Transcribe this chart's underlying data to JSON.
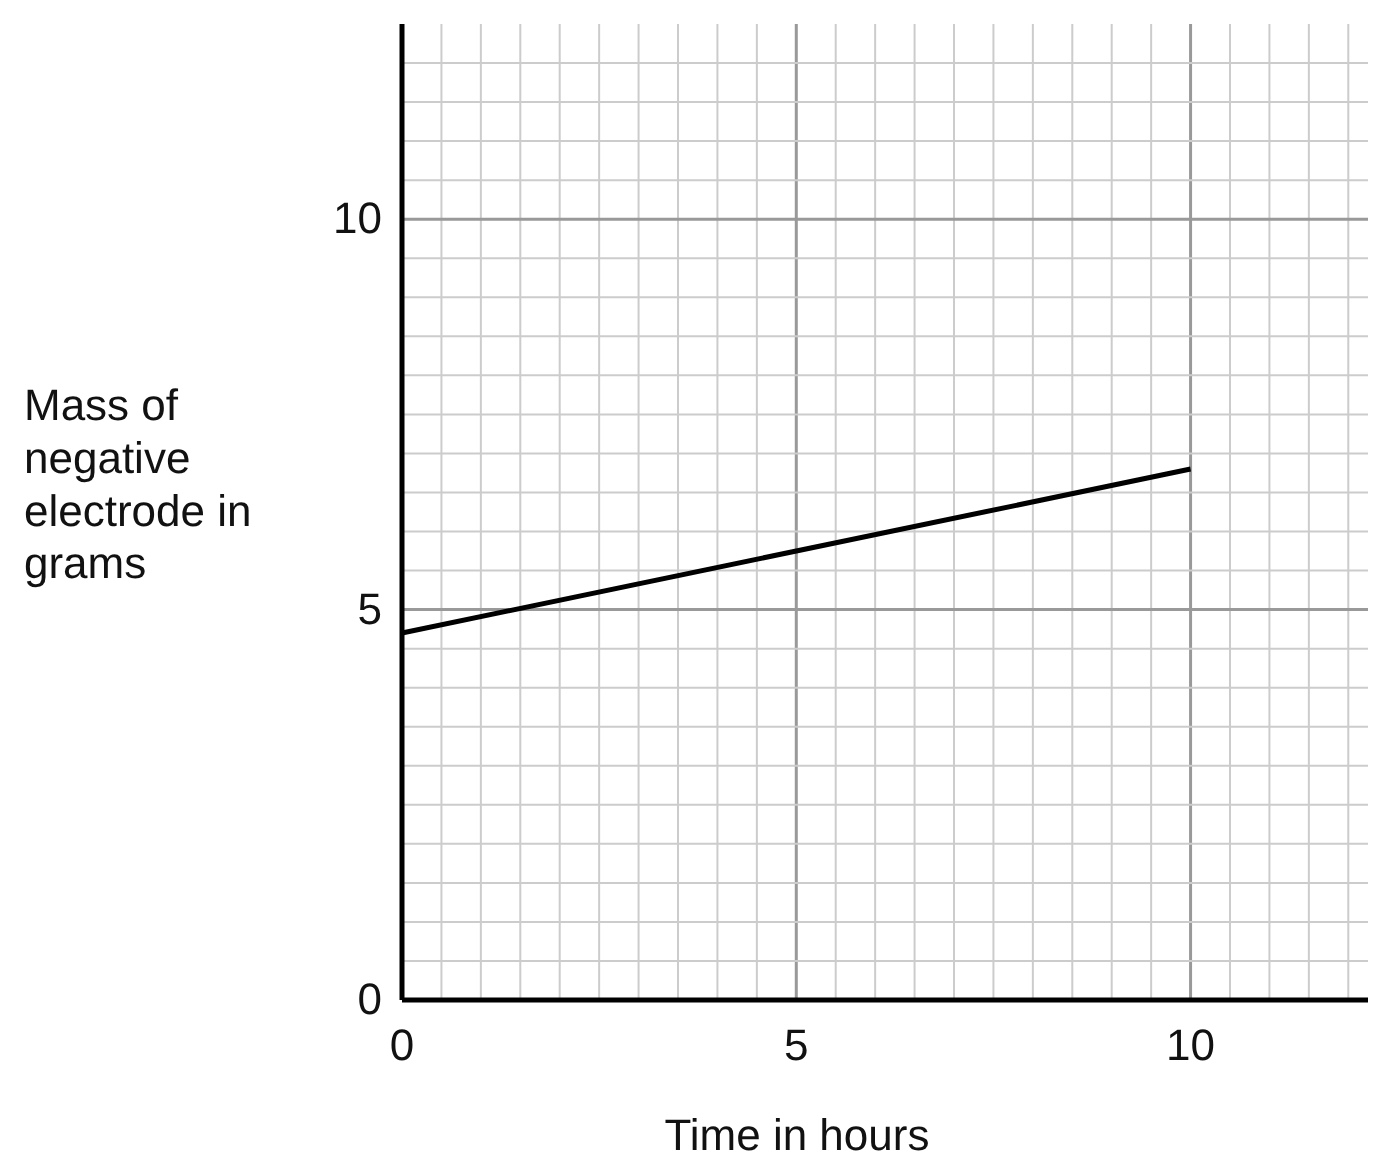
{
  "chart_data": {
    "type": "line",
    "xlabel": "Time in hours",
    "ylabel": "Mass of negative electrode in grams",
    "x": [
      0,
      10
    ],
    "series": [
      {
        "color": "#000000",
        "values": [
          4.7,
          6.8
        ]
      }
    ],
    "xlim": [
      0,
      12.25
    ],
    "ylim": [
      0,
      12.5
    ],
    "xticks": [
      0,
      {
        "value": 0.5,
        "label": null
      },
      {
        "value": 1,
        "label": null
      },
      {
        "value": 1.5,
        "label": null
      },
      {
        "value": 2,
        "label": null
      },
      {
        "value": 2.5,
        "label": null
      },
      {
        "value": 3,
        "label": null
      },
      {
        "value": 3.5,
        "label": null
      },
      {
        "value": 4,
        "label": null
      },
      {
        "value": 4.5,
        "label": null
      },
      5,
      {
        "value": 5.5,
        "label": null
      },
      {
        "value": 6,
        "label": null
      },
      {
        "value": 6.5,
        "label": null
      },
      {
        "value": 7,
        "label": null
      },
      {
        "value": 7.5,
        "label": null
      },
      {
        "value": 8,
        "label": null
      },
      {
        "value": 8.5,
        "label": null
      },
      {
        "value": 9,
        "label": null
      },
      {
        "value": 9.5,
        "label": null
      },
      10,
      {
        "value": 10.5,
        "label": null
      },
      {
        "value": 11,
        "label": null
      },
      {
        "value": 11.5,
        "label": null
      },
      {
        "value": 12,
        "label": null
      }
    ],
    "yticks": [
      0,
      {
        "value": 0.5,
        "label": null
      },
      {
        "value": 1,
        "label": null
      },
      {
        "value": 1.5,
        "label": null
      },
      {
        "value": 2,
        "label": null
      },
      {
        "value": 2.5,
        "label": null
      },
      {
        "value": 3,
        "label": null
      },
      {
        "value": 3.5,
        "label": null
      },
      {
        "value": 4,
        "label": null
      },
      {
        "value": 4.5,
        "label": null
      },
      5,
      {
        "value": 5.5,
        "label": null
      },
      {
        "value": 6,
        "label": null
      },
      {
        "value": 6.5,
        "label": null
      },
      {
        "value": 7,
        "label": null
      },
      {
        "value": 7.5,
        "label": null
      },
      {
        "value": 8,
        "label": null
      },
      {
        "value": 8.5,
        "label": null
      },
      {
        "value": 9,
        "label": null
      },
      {
        "value": 9.5,
        "label": null
      },
      10,
      {
        "value": 10.5,
        "label": null
      },
      {
        "value": 11,
        "label": null
      },
      {
        "value": 11.5,
        "label": null
      },
      {
        "value": 12,
        "label": null
      }
    ],
    "grid": true,
    "marker": "none",
    "line_style": "solid"
  }
}
